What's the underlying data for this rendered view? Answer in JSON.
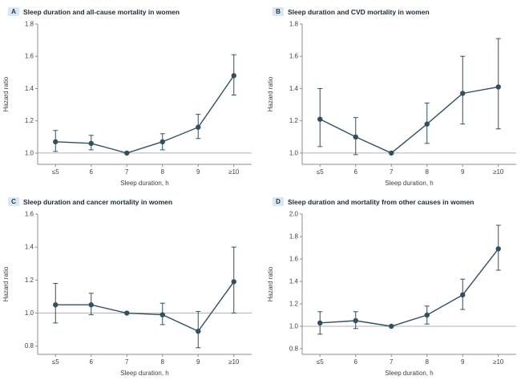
{
  "style": {
    "series_color": "#30505f",
    "axis_color": "#8c8c8c",
    "ref_line_color": "#b3b3b3",
    "panel_label_bg": "#d8e7f1",
    "panel_label_color": "#15384f",
    "title_color": "#1c2b36"
  },
  "chart_data": [
    {
      "panel": "A",
      "title": "Sleep duration and all-cause mortality in women",
      "type": "line",
      "x": [
        "≤5",
        "6",
        "7",
        "8",
        "9",
        "≥10"
      ],
      "xlabel": "Sleep duration, h",
      "ylabel": "Hazard ratio",
      "ylim": [
        0.93,
        1.8
      ],
      "yticks": [
        1.0,
        1.2,
        1.4,
        1.6,
        1.8
      ],
      "ref_line": 1.0,
      "values": [
        1.07,
        1.06,
        1.0,
        1.07,
        1.16,
        1.48
      ],
      "ci_low": [
        1.01,
        1.02,
        1.0,
        1.02,
        1.09,
        1.36
      ],
      "ci_high": [
        1.14,
        1.11,
        1.0,
        1.12,
        1.24,
        1.61
      ],
      "legend": "none",
      "grid": false
    },
    {
      "panel": "B",
      "title": "Sleep duration and CVD mortality in women",
      "type": "line",
      "x": [
        "≤5",
        "6",
        "7",
        "8",
        "9",
        "≥10"
      ],
      "xlabel": "Sleep duration, h",
      "ylabel": "Hazard ratio",
      "ylim": [
        0.93,
        1.8
      ],
      "yticks": [
        1.0,
        1.2,
        1.4,
        1.6,
        1.8
      ],
      "ref_line": 1.0,
      "values": [
        1.21,
        1.1,
        1.0,
        1.18,
        1.37,
        1.41
      ],
      "ci_low": [
        1.04,
        0.99,
        1.0,
        1.06,
        1.18,
        1.15
      ],
      "ci_high": [
        1.4,
        1.22,
        1.0,
        1.31,
        1.6,
        1.71
      ],
      "legend": "none",
      "grid": false
    },
    {
      "panel": "C",
      "title": "Sleep duration and cancer mortality in women",
      "type": "line",
      "x": [
        "≤5",
        "6",
        "7",
        "8",
        "9",
        "≥10"
      ],
      "xlabel": "Sleep duration, h",
      "ylabel": "Hazard ratio",
      "ylim": [
        0.75,
        1.6
      ],
      "yticks": [
        0.8,
        1.0,
        1.2,
        1.4,
        1.6
      ],
      "ref_line": 1.0,
      "values": [
        1.05,
        1.05,
        1.0,
        0.99,
        0.89,
        1.19
      ],
      "ci_low": [
        0.94,
        0.99,
        1.0,
        0.93,
        0.79,
        1.0
      ],
      "ci_high": [
        1.18,
        1.12,
        1.0,
        1.06,
        1.01,
        1.4
      ],
      "legend": "none",
      "grid": false
    },
    {
      "panel": "D",
      "title": "Sleep duration and mortality from other causes in women",
      "type": "line",
      "x": [
        "≤5",
        "6",
        "7",
        "8",
        "9",
        "≥10"
      ],
      "xlabel": "Sleep duration, h",
      "ylabel": "Hazard ratio",
      "ylim": [
        0.75,
        2.0
      ],
      "yticks": [
        0.8,
        1.0,
        1.2,
        1.4,
        1.6,
        1.8,
        2.0
      ],
      "ref_line": 1.0,
      "values": [
        1.03,
        1.05,
        1.0,
        1.1,
        1.28,
        1.69
      ],
      "ci_low": [
        0.93,
        0.98,
        1.0,
        1.02,
        1.15,
        1.5
      ],
      "ci_high": [
        1.13,
        1.13,
        1.0,
        1.18,
        1.42,
        1.9
      ],
      "legend": "none",
      "grid": false
    }
  ]
}
